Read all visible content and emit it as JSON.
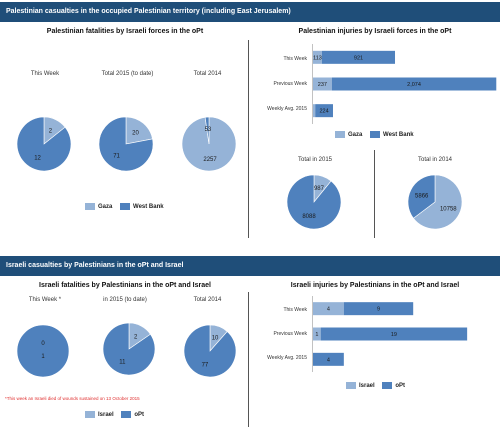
{
  "colors": {
    "gaza": "#95b3d7",
    "westbank": "#4f81bd",
    "banner": "#1f4e79",
    "note": "#e03030"
  },
  "section1": {
    "title": "Palestinian casualties in the occupied Palestinian territory (including East Jerusalem)"
  },
  "section2": {
    "title": "Israeli casualties by Palestinians in the oPt and Israel"
  },
  "note": "*This week an Israeli died of wounds sustained on 13 October 2015",
  "chart_data": [
    {
      "id": "pal-fatalities",
      "type": "pie",
      "title": "Palestinian fatalities by Israeli forces in the oPt",
      "legend": [
        "Gaza",
        "West Bank"
      ],
      "pies": [
        {
          "label": "This Week",
          "values": [
            2,
            12
          ]
        },
        {
          "label": "Total 2015 (to date)",
          "values": [
            20,
            71
          ]
        },
        {
          "label": "Total 2014",
          "values": [
            2257,
            53
          ]
        }
      ]
    },
    {
      "id": "pal-injuries",
      "type": "bar",
      "title": "Palestinian injuries by Israeli forces in the oPt",
      "legend": [
        "Gaza",
        "West Bank"
      ],
      "categories": [
        "This Week",
        "Previous Week",
        "Weekly Avg. 2015"
      ],
      "series": [
        {
          "name": "Gaza",
          "values": [
            113,
            237,
            28
          ],
          "labels": [
            "113",
            "237",
            ""
          ]
        },
        {
          "name": "West Bank",
          "values": [
            921,
            2074,
            224
          ],
          "labels": [
            "921",
            "2,074",
            "224"
          ]
        }
      ],
      "max": 2320
    },
    {
      "id": "pal-injuries-totals",
      "type": "pie",
      "pies": [
        {
          "label": "Total in 2015",
          "values": [
            987,
            8088
          ]
        },
        {
          "label": "Total in 2014",
          "values": [
            10758,
            5866
          ]
        }
      ]
    },
    {
      "id": "isr-fatalities",
      "type": "pie",
      "title": "Israeli fatalities by Palestinians in the oPt and Israel",
      "legend": [
        "Israel",
        "oPt"
      ],
      "pies": [
        {
          "label": "This Week *",
          "values": [
            0,
            1
          ]
        },
        {
          "label": "in 2015 (to date)",
          "values": [
            2,
            11
          ]
        },
        {
          "label": "Total 2014",
          "values": [
            10,
            77
          ]
        }
      ]
    },
    {
      "id": "isr-injuries",
      "type": "bar",
      "title": "Israeli injuries by Palestinians in the oPt and Israel",
      "legend": [
        "Israel",
        "oPt"
      ],
      "categories": [
        "This Week",
        "Previous Week",
        "Weekly Avg. 2015"
      ],
      "series": [
        {
          "name": "Israel",
          "values": [
            4,
            1,
            0
          ],
          "labels": [
            "4",
            "1",
            "0"
          ]
        },
        {
          "name": "oPt",
          "values": [
            9,
            19,
            4
          ],
          "labels": [
            "9",
            "19",
            "4"
          ]
        }
      ],
      "max": 20.5
    }
  ]
}
